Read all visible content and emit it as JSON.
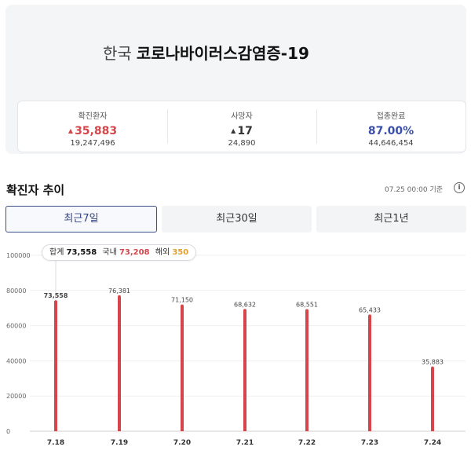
{
  "header": {
    "country": "한국",
    "disease": "코로나바이러스감염증-19"
  },
  "stats": [
    {
      "label": "확진환자",
      "main": "35,883",
      "trend": "up",
      "sub": "19,247,496",
      "color": "#d4464a"
    },
    {
      "label": "사망자",
      "main": "17",
      "trend": "up",
      "sub": "24,890",
      "color": "#333333"
    },
    {
      "label": "접종완료",
      "main": "87.00%",
      "trend": "",
      "sub": "44,646,454",
      "color": "#3b4fa8"
    }
  ],
  "section": {
    "title": "확진자 추이",
    "as_of": "07.25 00:00 기준",
    "info_icon": "info-icon"
  },
  "tabs": [
    {
      "label": "최근7일",
      "active": true
    },
    {
      "label": "최근30일",
      "active": false
    },
    {
      "label": "최근1년",
      "active": false
    }
  ],
  "tooltip": {
    "total_label": "합계",
    "total": "73,558",
    "domestic_label": "국내",
    "domestic": "73,208",
    "overseas_label": "해외",
    "overseas": "350"
  },
  "chart_data": {
    "type": "bar",
    "categories": [
      "7.18",
      "7.19",
      "7.20",
      "7.21",
      "7.22",
      "7.23",
      "7.24"
    ],
    "values": [
      73558,
      76381,
      71150,
      68632,
      68551,
      65433,
      35883
    ],
    "value_labels": [
      "73,558",
      "76,381",
      "71,150",
      "68,632",
      "68,551",
      "65,433",
      "35,883"
    ],
    "y_ticks": [
      0,
      20000,
      40000,
      60000,
      80000,
      100000
    ],
    "ylim": [
      0,
      100000
    ],
    "bar_color": "#d4464a",
    "highlighted_index": 0
  }
}
